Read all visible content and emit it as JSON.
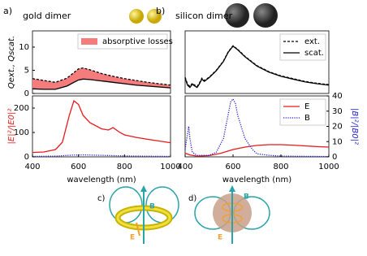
{
  "chart_data": [
    {
      "type": "line",
      "panel_label": "a)",
      "title": "gold dimer",
      "ylabel": "Qext., Qscat.",
      "xlim": [
        400,
        1000
      ],
      "ylim": [
        0,
        13.5
      ],
      "yticks": [
        0,
        5,
        10
      ],
      "legend": "upper right",
      "series": [
        {
          "color": "#000000",
          "linestyle": "dashed",
          "x": [
            400,
            450,
            500,
            550,
            580,
            600,
            620,
            650,
            700,
            750,
            800,
            850,
            900,
            950,
            1000
          ],
          "values": [
            3.2,
            2.8,
            2.4,
            3.3,
            4.5,
            5.3,
            5.5,
            5.1,
            4.3,
            3.7,
            3.2,
            2.8,
            2.4,
            2.1,
            1.8
          ]
        },
        {
          "color": "#000000",
          "linestyle": "solid",
          "x": [
            400,
            450,
            500,
            550,
            580,
            600,
            620,
            650,
            700,
            750,
            800,
            850,
            900,
            950,
            1000
          ],
          "values": [
            1.0,
            0.9,
            0.9,
            1.6,
            2.4,
            2.9,
            3.1,
            3.0,
            2.7,
            2.4,
            2.1,
            1.8,
            1.6,
            1.4,
            1.2
          ]
        }
      ],
      "fill": {
        "name": "absorptive losses",
        "color": "#f47c7c",
        "between": [
          0,
          1
        ]
      }
    },
    {
      "type": "line",
      "ylabel": "|E|²/|E0|²",
      "ylabel_color": "#e41a1c",
      "xlabel": "wavelength (nm)",
      "xlim": [
        400,
        1000
      ],
      "ylim": [
        0,
        250
      ],
      "yticks": [
        0,
        100,
        200
      ],
      "xticks": [
        400,
        600,
        800,
        1000
      ],
      "y2lim": [
        0,
        40
      ],
      "series": [
        {
          "color": "#e41a1c",
          "linestyle": "solid",
          "x": [
            400,
            450,
            500,
            530,
            560,
            580,
            600,
            620,
            650,
            700,
            730,
            750,
            780,
            800,
            850,
            900,
            950,
            1000
          ],
          "values": [
            18,
            20,
            30,
            60,
            170,
            230,
            215,
            170,
            140,
            115,
            110,
            120,
            100,
            90,
            80,
            72,
            65,
            58
          ]
        },
        {
          "color": "#1f1fd0",
          "linestyle": "dotted",
          "axis": "y2",
          "x": [
            400,
            500,
            580,
            620,
            700,
            800,
            1000
          ],
          "values": [
            0.3,
            0.5,
            1.2,
            1.3,
            1.0,
            0.6,
            0.3
          ]
        }
      ]
    },
    {
      "type": "line",
      "panel_label": "b)",
      "title": "silicon dimer",
      "xlim": [
        400,
        1000
      ],
      "ylim": [
        0,
        13.5
      ],
      "legend": "upper right",
      "series": [
        {
          "name": "ext.",
          "color": "#000000",
          "linestyle": "dashed",
          "x": [
            400,
            410,
            420,
            430,
            440,
            450,
            460,
            470,
            480,
            500,
            530,
            560,
            580,
            600,
            620,
            650,
            700,
            750,
            800,
            850,
            900,
            950,
            1000
          ],
          "values": [
            3.5,
            2.0,
            1.5,
            2.2,
            1.8,
            1.5,
            2.3,
            3.3,
            2.8,
            3.5,
            5.0,
            7.0,
            9.0,
            10.3,
            9.5,
            8.0,
            6.0,
            4.7,
            3.8,
            3.2,
            2.6,
            2.2,
            1.9
          ]
        },
        {
          "name": "scat.",
          "color": "#000000",
          "linestyle": "solid",
          "x": [
            400,
            410,
            420,
            430,
            440,
            450,
            460,
            470,
            480,
            500,
            530,
            560,
            580,
            600,
            620,
            650,
            700,
            750,
            800,
            850,
            900,
            950,
            1000
          ],
          "values": [
            3.3,
            1.8,
            1.3,
            2.0,
            1.6,
            1.3,
            2.1,
            3.1,
            2.6,
            3.4,
            4.9,
            6.9,
            8.9,
            10.2,
            9.4,
            7.9,
            5.9,
            4.6,
            3.7,
            3.1,
            2.5,
            2.1,
            1.8
          ]
        }
      ]
    },
    {
      "type": "line",
      "xlabel": "wavelength (nm)",
      "y2label": "|B|²/|B0|²",
      "y2label_color": "#1f1fd0",
      "legend": "upper right",
      "xlim": [
        400,
        1000
      ],
      "ylim": [
        0,
        250
      ],
      "xticks": [
        400,
        600,
        800,
        1000
      ],
      "y2lim": [
        0,
        40
      ],
      "y2ticks": [
        0,
        10,
        20,
        30,
        40
      ],
      "series": [
        {
          "name": "E",
          "color": "#e41a1c",
          "linestyle": "solid",
          "x": [
            400,
            420,
            450,
            500,
            550,
            600,
            650,
            700,
            750,
            800,
            850,
            900,
            950,
            1000
          ],
          "values": [
            15,
            8,
            3,
            5,
            15,
            30,
            40,
            47,
            50,
            50,
            48,
            45,
            42,
            40
          ]
        },
        {
          "name": "B",
          "color": "#1f1fd0",
          "linestyle": "dotted",
          "axis": "y2",
          "x": [
            400,
            410,
            415,
            420,
            430,
            450,
            500,
            530,
            560,
            580,
            590,
            600,
            610,
            620,
            650,
            680,
            700,
            750,
            800,
            1000
          ],
          "values": [
            5,
            15,
            20,
            12,
            3,
            1,
            1,
            3,
            12,
            28,
            36,
            38,
            35,
            27,
            12,
            5,
            2,
            1,
            0.5,
            0.2
          ]
        }
      ]
    }
  ],
  "diagrams": [
    {
      "label": "c)",
      "field_b": "B",
      "field_e": "E"
    },
    {
      "label": "d)",
      "field_b": "B",
      "field_e": "E"
    }
  ]
}
